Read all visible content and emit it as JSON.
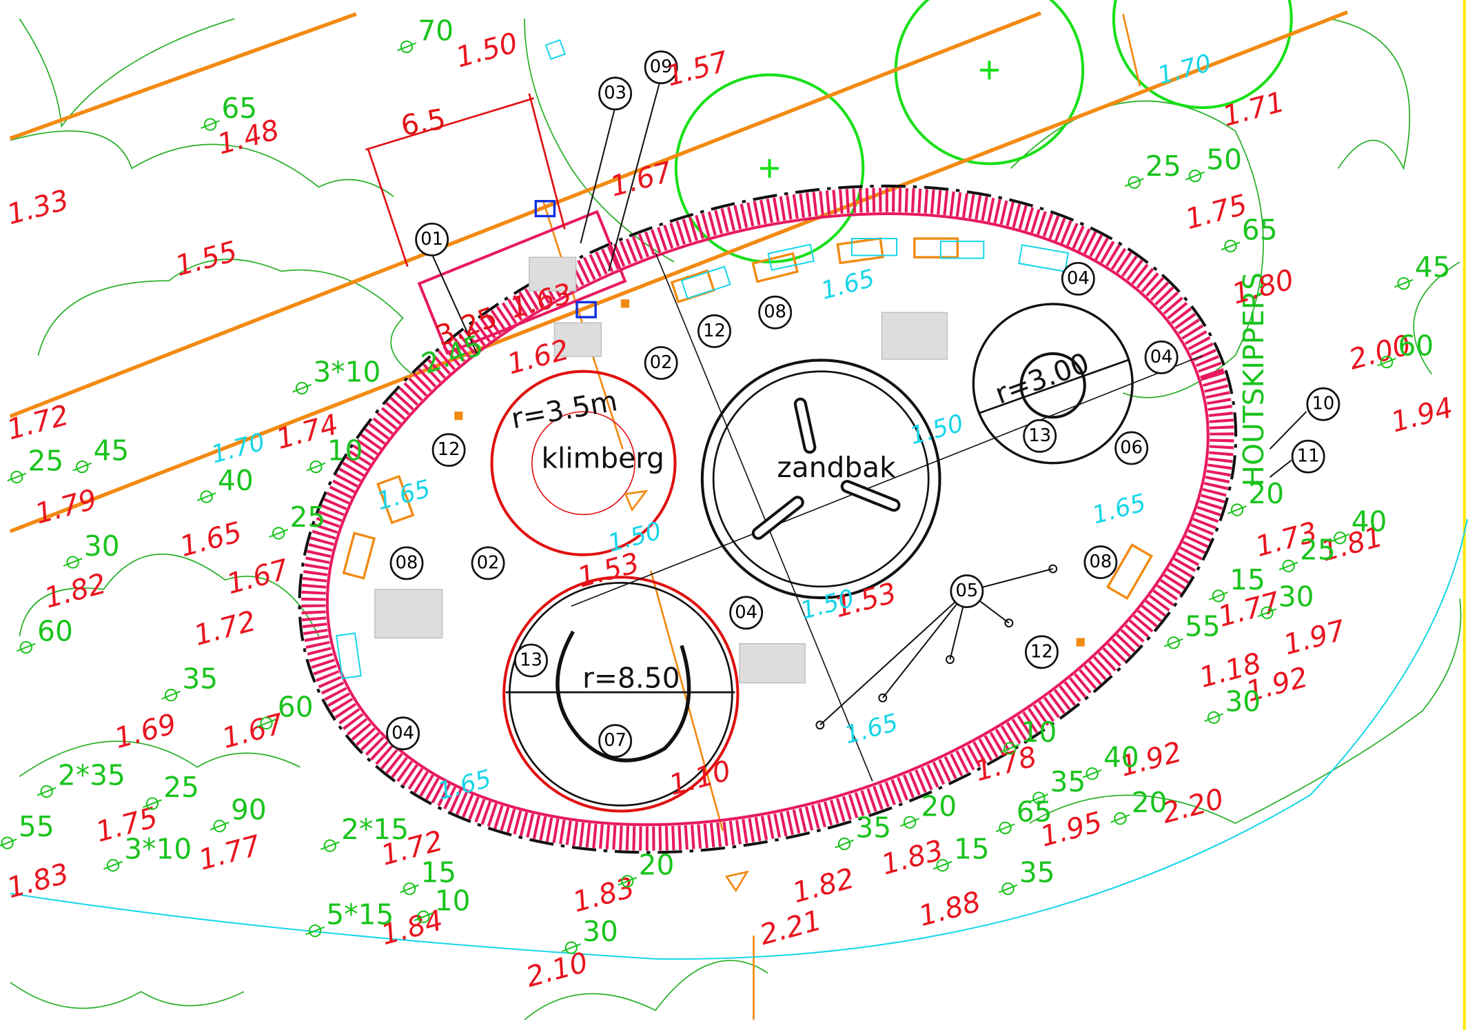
{
  "callouts": [
    "01",
    "03",
    "09",
    "02",
    "12",
    "08",
    "04",
    "04",
    "13",
    "06",
    "10",
    "11",
    "12",
    "08",
    "02",
    "08",
    "05",
    "04",
    "13",
    "07",
    "04",
    "12"
  ],
  "dimensions": [
    "6.5",
    "3.25",
    "r=3.5m",
    "r=3.00",
    "r=8.50",
    "2.45"
  ],
  "names": [
    "klimberg",
    "zandbak",
    "HOUTSKIPPERS"
  ],
  "levels": [
    "1.50",
    "1.57",
    "1.48",
    "1.33",
    "1.55",
    "1.67",
    "1.71",
    "1.75",
    "1.80",
    "2.00",
    "1.94",
    "1.72",
    "1.79",
    "1.65",
    "1.82",
    "1.67",
    "1.72",
    "1.69",
    "1.67",
    "1.75",
    "1.77",
    "1.83",
    "1.72",
    "1.84",
    "2.10",
    "1.83",
    "2.21",
    "1.82",
    "1.83",
    "1.88",
    "1.95",
    "1.92",
    "2.20",
    "1.78",
    "1.18",
    "1.77",
    "1.97",
    "1.92",
    "1.81",
    "1.73",
    "1.74",
    "1.53",
    "1.53",
    "1.10",
    "1.62",
    "1.63"
  ],
  "design_levels": [
    "1.70",
    "1.65",
    "1.70",
    "1.65",
    "1.50",
    "1.65",
    "1.50",
    "1.50",
    "1.65",
    "1.65"
  ],
  "trees": [
    "70",
    "65",
    "25",
    "50",
    "65",
    "45",
    "60",
    "3*10",
    "45",
    "25",
    "40",
    "10",
    "30",
    "25",
    "60",
    "35",
    "60",
    "2*35",
    "25",
    "55",
    "90",
    "3*10",
    "2*15",
    "15",
    "10",
    "5*15",
    "20",
    "30",
    "35",
    "20",
    "15",
    "65",
    "35",
    "40",
    "20",
    "35",
    "10",
    "55",
    "15",
    "30",
    "30",
    "25",
    "40",
    "20"
  ]
}
